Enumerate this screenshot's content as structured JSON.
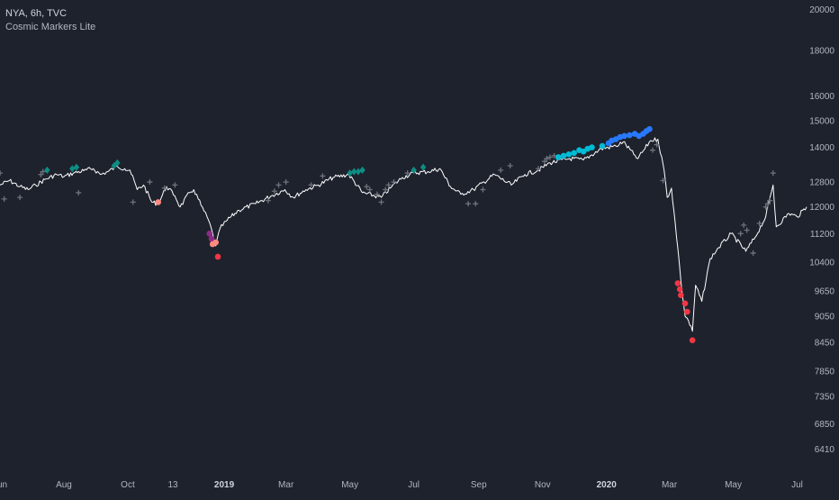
{
  "header": {
    "symbol_line": "NYA, 6h, TVC",
    "indicator_line": "Cosmic Markers Lite"
  },
  "colors": {
    "background": "#1e222d",
    "price_line": "#ffffff",
    "axis_text": "#b2b5be",
    "plus_marker": "#6f737d",
    "diamond_marker": "#0e8d83",
    "cyan_marker": "#00bcd4",
    "blue_marker": "#2979ff",
    "purple_marker": "#8e2b86",
    "red_marker": "#f23645",
    "salmon_marker": "#ff8a80"
  },
  "chart_data": {
    "type": "line",
    "scale": "log",
    "x_range": [
      "2018-06-01",
      "2020-07-10"
    ],
    "ylim": [
      6100,
      20500
    ],
    "y_ticks": [
      20000,
      18000,
      16000,
      15000,
      14000,
      12800,
      12000,
      11200,
      10400,
      9650,
      9050,
      8450,
      7850,
      7350,
      6850,
      6410
    ],
    "x_ticks": [
      {
        "label": "Jun",
        "date": "2018-06-01",
        "bold": false
      },
      {
        "label": "Aug",
        "date": "2018-08-01",
        "bold": false
      },
      {
        "label": "Oct",
        "date": "2018-10-01",
        "bold": false
      },
      {
        "label": "13",
        "date": "2018-11-13",
        "bold": false
      },
      {
        "label": "2019",
        "date": "2019-01-01",
        "bold": true
      },
      {
        "label": "Mar",
        "date": "2019-03-01",
        "bold": false
      },
      {
        "label": "May",
        "date": "2019-05-01",
        "bold": false
      },
      {
        "label": "Jul",
        "date": "2019-07-01",
        "bold": false
      },
      {
        "label": "Sep",
        "date": "2019-09-01",
        "bold": false
      },
      {
        "label": "Nov",
        "date": "2019-11-01",
        "bold": false
      },
      {
        "label": "2020",
        "date": "2020-01-01",
        "bold": true
      },
      {
        "label": "Mar",
        "date": "2020-03-01",
        "bold": false
      },
      {
        "label": "May",
        "date": "2020-05-01",
        "bold": false
      },
      {
        "label": "Jul",
        "date": "2020-07-01",
        "bold": false
      }
    ],
    "series": [
      {
        "values": [
          [
            "2018-06-01",
            12700
          ],
          [
            "2018-06-10",
            12850
          ],
          [
            "2018-06-20",
            12650
          ],
          [
            "2018-06-28",
            12550
          ],
          [
            "2018-07-05",
            12700
          ],
          [
            "2018-07-15",
            12900
          ],
          [
            "2018-07-25",
            13050
          ],
          [
            "2018-08-01",
            12980
          ],
          [
            "2018-08-10",
            13100
          ],
          [
            "2018-08-20",
            13180
          ],
          [
            "2018-08-29",
            13250
          ],
          [
            "2018-09-05",
            13050
          ],
          [
            "2018-09-12",
            13150
          ],
          [
            "2018-09-21",
            13330
          ],
          [
            "2018-09-28",
            13250
          ],
          [
            "2018-10-03",
            13200
          ],
          [
            "2018-10-10",
            12550
          ],
          [
            "2018-10-16",
            12700
          ],
          [
            "2018-10-24",
            12150
          ],
          [
            "2018-10-30",
            12100
          ],
          [
            "2018-11-07",
            12650
          ],
          [
            "2018-11-15",
            12350
          ],
          [
            "2018-11-20",
            12000
          ],
          [
            "2018-11-29",
            12450
          ],
          [
            "2018-12-03",
            12550
          ],
          [
            "2018-12-10",
            12050
          ],
          [
            "2018-12-17",
            11600
          ],
          [
            "2018-12-21",
            11200
          ],
          [
            "2018-12-24",
            10850
          ],
          [
            "2018-12-28",
            11350
          ],
          [
            "2019-01-04",
            11600
          ],
          [
            "2019-01-15",
            11900
          ],
          [
            "2019-01-31",
            12100
          ],
          [
            "2019-02-15",
            12350
          ],
          [
            "2019-02-28",
            12550
          ],
          [
            "2019-03-08",
            12300
          ],
          [
            "2019-03-20",
            12550
          ],
          [
            "2019-04-01",
            12700
          ],
          [
            "2019-04-15",
            12950
          ],
          [
            "2019-04-30",
            13050
          ],
          [
            "2019-05-13",
            12450
          ],
          [
            "2019-05-31",
            12300
          ],
          [
            "2019-06-10",
            12650
          ],
          [
            "2019-06-20",
            12950
          ],
          [
            "2019-07-01",
            13100
          ],
          [
            "2019-07-15",
            13150
          ],
          [
            "2019-07-26",
            13250
          ],
          [
            "2019-08-05",
            12650
          ],
          [
            "2019-08-15",
            12400
          ],
          [
            "2019-08-27",
            12550
          ],
          [
            "2019-09-06",
            12800
          ],
          [
            "2019-09-16",
            13050
          ],
          [
            "2019-10-02",
            12700
          ],
          [
            "2019-10-15",
            13050
          ],
          [
            "2019-10-28",
            13200
          ],
          [
            "2019-11-08",
            13450
          ],
          [
            "2019-11-27",
            13600
          ],
          [
            "2019-12-10",
            13550
          ],
          [
            "2019-12-27",
            13950
          ],
          [
            "2020-01-10",
            14050
          ],
          [
            "2020-01-17",
            14200
          ],
          [
            "2020-01-27",
            13750
          ],
          [
            "2020-01-31",
            13600
          ],
          [
            "2020-02-12",
            14250
          ],
          [
            "2020-02-19",
            14300
          ],
          [
            "2020-02-25",
            13200
          ],
          [
            "2020-02-28",
            12300
          ],
          [
            "2020-03-03",
            12600
          ],
          [
            "2020-03-09",
            10800
          ],
          [
            "2020-03-12",
            9900
          ],
          [
            "2020-03-16",
            9050
          ],
          [
            "2020-03-18",
            9000
          ],
          [
            "2020-03-23",
            8700
          ],
          [
            "2020-03-26",
            9800
          ],
          [
            "2020-04-01",
            9400
          ],
          [
            "2020-04-09",
            10500
          ],
          [
            "2020-04-17",
            10800
          ],
          [
            "2020-04-29",
            11200
          ],
          [
            "2020-05-13",
            10700
          ],
          [
            "2020-05-22",
            11100
          ],
          [
            "2020-06-01",
            11700
          ],
          [
            "2020-06-08",
            12700
          ],
          [
            "2020-06-11",
            11400
          ],
          [
            "2020-06-23",
            11800
          ],
          [
            "2020-07-01",
            11700
          ],
          [
            "2020-07-10",
            12000
          ]
        ]
      }
    ],
    "markers": {
      "plus_grey": [
        [
          "2018-06-01",
          13100
        ],
        [
          "2018-06-05",
          12250
        ],
        [
          "2018-06-20",
          12300
        ],
        [
          "2018-07-10",
          13050
        ],
        [
          "2018-07-12",
          13150
        ],
        [
          "2018-08-15",
          12450
        ],
        [
          "2018-10-06",
          12150
        ],
        [
          "2018-10-22",
          12800
        ],
        [
          "2018-11-05",
          12600
        ],
        [
          "2018-11-15",
          12700
        ],
        [
          "2019-02-12",
          12200
        ],
        [
          "2019-02-18",
          12500
        ],
        [
          "2019-02-22",
          12700
        ],
        [
          "2019-03-01",
          12800
        ],
        [
          "2019-03-25",
          12700
        ],
        [
          "2019-04-05",
          13000
        ],
        [
          "2019-05-17",
          12650
        ],
        [
          "2019-05-20",
          12550
        ],
        [
          "2019-05-27",
          12400
        ],
        [
          "2019-05-31",
          12150
        ],
        [
          "2019-06-04",
          12550
        ],
        [
          "2019-06-07",
          12700
        ],
        [
          "2019-06-12",
          12800
        ],
        [
          "2019-06-25",
          13100
        ],
        [
          "2019-08-22",
          12100
        ],
        [
          "2019-08-29",
          12100
        ],
        [
          "2019-09-05",
          12550
        ],
        [
          "2019-09-22",
          13200
        ],
        [
          "2019-10-01",
          13350
        ],
        [
          "2019-10-28",
          13250
        ],
        [
          "2019-11-03",
          13500
        ],
        [
          "2019-11-05",
          13600
        ],
        [
          "2019-11-08",
          13650
        ],
        [
          "2019-11-12",
          13700
        ],
        [
          "2020-02-14",
          13900
        ],
        [
          "2020-02-18",
          14100
        ],
        [
          "2020-02-24",
          12850
        ],
        [
          "2020-05-08",
          11200
        ],
        [
          "2020-05-11",
          11450
        ],
        [
          "2020-05-14",
          11300
        ],
        [
          "2020-05-20",
          10650
        ],
        [
          "2020-05-26",
          11500
        ],
        [
          "2020-06-01",
          12000
        ],
        [
          "2020-06-03",
          12100
        ],
        [
          "2020-06-05",
          12200
        ],
        [
          "2020-06-08",
          13100
        ]
      ],
      "diamond_teal": [
        [
          "2018-07-16",
          13200
        ],
        [
          "2018-08-09",
          13250
        ],
        [
          "2018-08-13",
          13300
        ],
        [
          "2018-09-18",
          13350
        ],
        [
          "2018-09-21",
          13450
        ],
        [
          "2019-05-01",
          13100
        ],
        [
          "2019-05-05",
          13150
        ],
        [
          "2019-05-09",
          13150
        ],
        [
          "2019-05-13",
          13200
        ],
        [
          "2019-07-01",
          13200
        ],
        [
          "2019-07-10",
          13300
        ]
      ],
      "dot_cyan": [
        [
          "2019-11-16",
          13650
        ],
        [
          "2019-11-21",
          13700
        ],
        [
          "2019-11-26",
          13750
        ],
        [
          "2019-12-01",
          13800
        ],
        [
          "2019-12-06",
          13900
        ],
        [
          "2019-12-10",
          13850
        ],
        [
          "2019-12-14",
          13950
        ],
        [
          "2019-12-18",
          14000
        ],
        [
          "2019-12-28",
          14050
        ]
      ],
      "dot_blue": [
        [
          "2020-01-03",
          14150
        ],
        [
          "2020-01-06",
          14250
        ],
        [
          "2020-01-10",
          14300
        ],
        [
          "2020-01-14",
          14380
        ],
        [
          "2020-01-18",
          14420
        ],
        [
          "2020-01-23",
          14450
        ],
        [
          "2020-01-28",
          14500
        ],
        [
          "2020-02-01",
          14420
        ],
        [
          "2020-02-05",
          14500
        ],
        [
          "2020-02-08",
          14600
        ],
        [
          "2020-02-11",
          14680
        ]
      ],
      "dot_purple": [
        [
          "2018-12-18",
          11200
        ],
        [
          "2018-12-20",
          11050
        ]
      ],
      "dot_salmon": [
        [
          "2018-10-30",
          12150
        ],
        [
          "2018-12-21",
          10900
        ],
        [
          "2018-12-24",
          10950
        ]
      ],
      "dot_red": [
        [
          "2018-12-26",
          10550
        ],
        [
          "2020-03-09",
          9850
        ],
        [
          "2020-03-11",
          9700
        ],
        [
          "2020-03-12",
          9550
        ],
        [
          "2020-03-16",
          9350
        ],
        [
          "2020-03-18",
          9150
        ],
        [
          "2020-03-23",
          8500
        ]
      ]
    }
  }
}
